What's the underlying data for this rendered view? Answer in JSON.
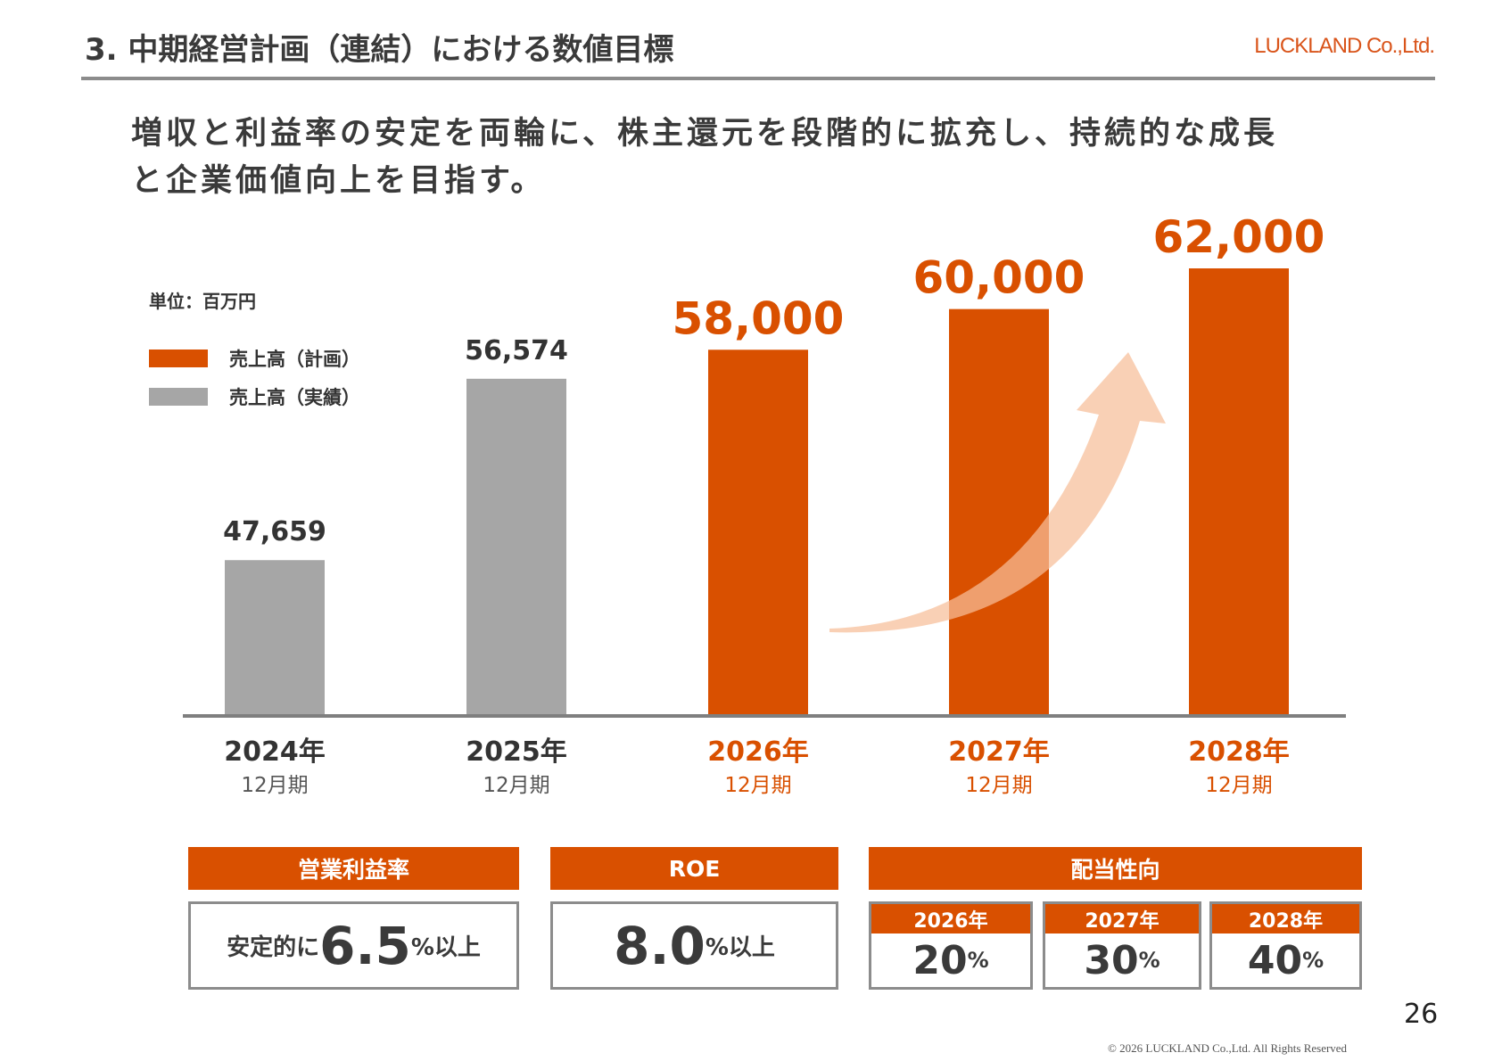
{
  "header": {
    "title": "3. 中期経営計画（連結）における数値目標",
    "logo": "LUCKLAND Co.,Ltd."
  },
  "lead": {
    "line1": "増収と利益率の安定を両輪に、株主還元を段階的に拡充し、持続的な成長",
    "line2": "と企業価値向上を目指す。"
  },
  "colors": {
    "plan": "#D95000",
    "actual": "#A6A6A6",
    "arrow": "#F7BE98"
  },
  "chart_data": {
    "type": "bar",
    "unit_label": "単位：百万円",
    "legend": [
      {
        "name": "売上高（計画）",
        "color": "#D95000"
      },
      {
        "name": "売上高（実績）",
        "color": "#A6A6A6"
      }
    ],
    "categories": [
      {
        "year": "2024年",
        "period": "12月期"
      },
      {
        "year": "2025年",
        "period": "12月期"
      },
      {
        "year": "2026年",
        "period": "12月期"
      },
      {
        "year": "2027年",
        "period": "12月期"
      },
      {
        "year": "2028年",
        "period": "12月期"
      }
    ],
    "values": [
      47659,
      56574,
      58000,
      60000,
      62000
    ],
    "value_labels": [
      "47,659",
      "56,574",
      "58,000",
      "60,000",
      "62,000"
    ],
    "series_type": [
      "actual",
      "actual",
      "plan",
      "plan",
      "plan"
    ],
    "grid": false,
    "legend_position": "top-left",
    "annotation": "upward-arrow"
  },
  "kpis": {
    "op_margin": {
      "label": "営業利益率",
      "prefix": "安定的に",
      "value": "6.5",
      "suffix": "%以上"
    },
    "roe": {
      "label": "ROE",
      "value": "8.0",
      "suffix": "%以上"
    },
    "payout": {
      "label": "配当性向",
      "items": [
        {
          "year": "2026年",
          "value": "20",
          "unit": "%"
        },
        {
          "year": "2027年",
          "value": "30",
          "unit": "%"
        },
        {
          "year": "2028年",
          "value": "40",
          "unit": "%"
        }
      ]
    }
  },
  "footer": {
    "page": "26",
    "copyright": "© 2026 LUCKLAND Co.,Ltd. All Rights Reserved"
  }
}
